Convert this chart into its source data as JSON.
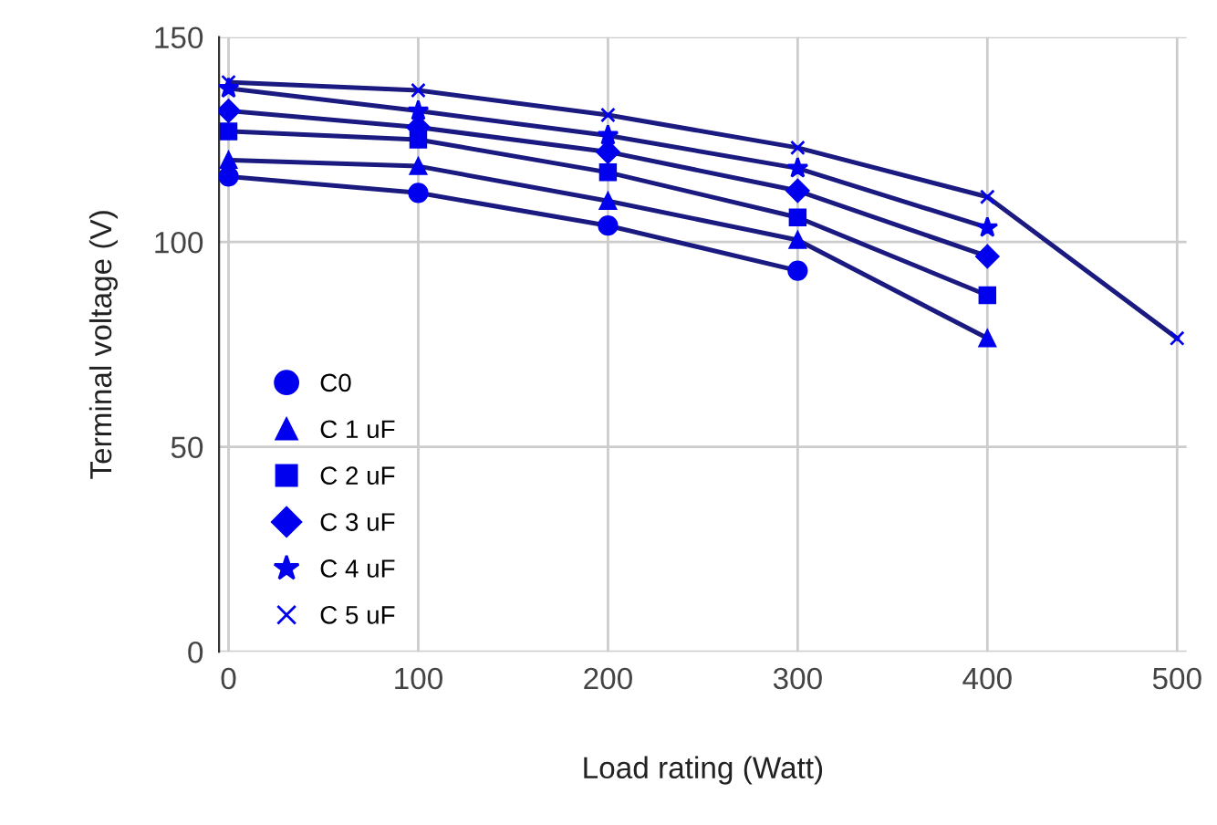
{
  "chart_data": {
    "type": "line",
    "xlabel": "Load rating (Watt)",
    "ylabel": "Terminal voltage (V)",
    "xlim": [
      -5,
      505
    ],
    "xticks": [
      0,
      100,
      200,
      300,
      400,
      500
    ],
    "ylim": [
      0,
      150
    ],
    "yticks": [
      0,
      50,
      100,
      150
    ],
    "grid": true,
    "legend": "left",
    "series": [
      {
        "name": "C0",
        "color": "#0000ee",
        "marker": "circle",
        "x": [
          0,
          100,
          200,
          300
        ],
        "values": [
          116,
          112,
          104,
          93
        ]
      },
      {
        "name": "C 1 uF",
        "color": "#0000ee",
        "marker": "triangle",
        "x": [
          0,
          100,
          200,
          300,
          400
        ],
        "values": [
          120,
          118.5,
          110,
          100.5,
          76.5
        ]
      },
      {
        "name": "C 2 uF",
        "color": "#0000ee",
        "marker": "square",
        "x": [
          0,
          100,
          200,
          300,
          400
        ],
        "values": [
          127,
          125,
          117,
          106,
          87
        ]
      },
      {
        "name": "C 3 uF",
        "color": "#0000ee",
        "marker": "diamond",
        "x": [
          0,
          100,
          200,
          300,
          400
        ],
        "values": [
          132,
          128,
          122,
          112.5,
          96.5
        ]
      },
      {
        "name": "C 4 uF",
        "color": "#0000ee",
        "marker": "star",
        "x": [
          0,
          100,
          200,
          300,
          400
        ],
        "values": [
          137.5,
          132,
          126,
          118,
          103.5
        ]
      },
      {
        "name": "C 5 uF",
        "color": "#0000ee",
        "marker": "cross",
        "x": [
          0,
          100,
          200,
          300,
          400,
          500
        ],
        "values": [
          139,
          137,
          131,
          123,
          111,
          76.5
        ]
      }
    ]
  }
}
